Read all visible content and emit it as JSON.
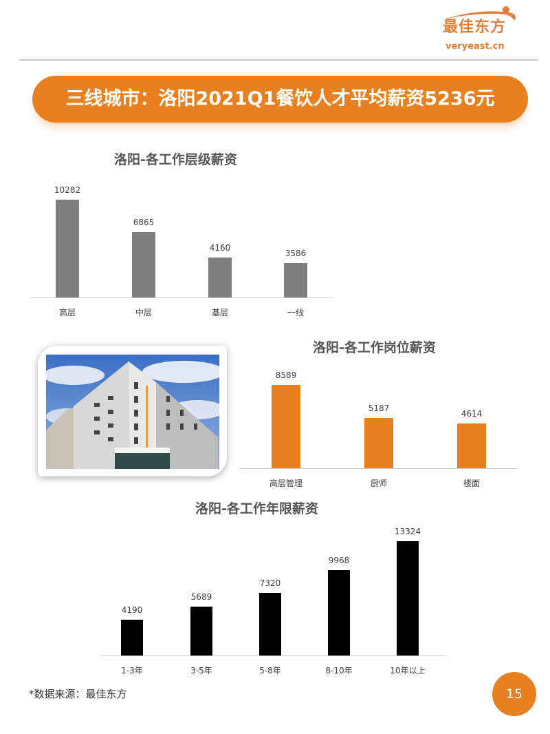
{
  "logo": {
    "cn": "最佳东方",
    "en": "veryeast.cn"
  },
  "banner": {
    "title": "三线城市：洛阳2021Q1餐饮人才平均薪资5236元"
  },
  "colors": {
    "accent": "#e8801f",
    "chart1_bar": "#7f7f7f",
    "chart2_bar": "#e8801f",
    "chart3_bar": "#000000"
  },
  "chart_data": [
    {
      "type": "bar",
      "title": "洛阳-各工作层级薪资",
      "categories": [
        "高层",
        "中层",
        "基层",
        "一线"
      ],
      "values": [
        10282,
        6865,
        4160,
        3586
      ],
      "ylim": [
        0,
        12000
      ],
      "grid": false
    },
    {
      "type": "bar",
      "title": "洛阳-各工作岗位薪资",
      "categories": [
        "高层管理",
        "厨师",
        "楼面"
      ],
      "values": [
        8589,
        5187,
        4614
      ],
      "ylim": [
        0,
        10000
      ],
      "grid": false
    },
    {
      "type": "bar",
      "title": "洛阳-各工作年限薪资",
      "categories": [
        "1-3年",
        "3-5年",
        "5-8年",
        "8-10年",
        "10年以上"
      ],
      "values": [
        4190,
        5689,
        7320,
        9968,
        13324
      ],
      "ylim": [
        0,
        16000
      ],
      "grid": false
    }
  ],
  "footer": {
    "source": "*数据来源：最佳东方",
    "page_number": "15"
  }
}
